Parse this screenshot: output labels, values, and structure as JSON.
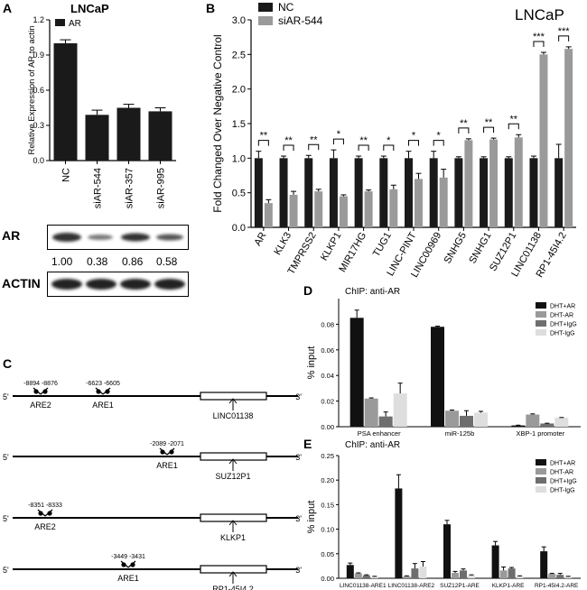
{
  "panels": {
    "A": {
      "letter": "A",
      "cell": "LNCaP",
      "chart_data": {
        "type": "bar",
        "categories": [
          "NC",
          "siAR-544",
          "siAR-357",
          "siAR-995"
        ],
        "series": [
          {
            "name": "AR",
            "values": [
              1.0,
              0.39,
              0.45,
              0.42
            ],
            "errors": [
              0.03,
              0.04,
              0.03,
              0.03
            ],
            "color": "#1a1a1a"
          }
        ],
        "ylabel": "Relative Expression of AR to actin",
        "ylim": [
          0,
          1.2
        ],
        "yticks": [
          0.0,
          0.3,
          0.6,
          0.9,
          1.2
        ],
        "legend": "top-left",
        "grid": false
      },
      "blot": {
        "ar_label": "AR",
        "actin_label": "ACTIN",
        "ratios": [
          "1.00",
          "0.38",
          "0.86",
          "0.58"
        ]
      }
    },
    "B": {
      "letter": "B",
      "cell": "LNCaP",
      "chart_data": {
        "type": "bar",
        "categories": [
          "AR",
          "KLK3",
          "TMPRSS2",
          "KLKP1",
          "MIR17HG",
          "TUG1",
          "LINC-PINT",
          "LINC00969",
          "SNHG5",
          "SNHG1",
          "SUZ12P1",
          "LINC01138",
          "RP1-45I4.2"
        ],
        "series": [
          {
            "name": "NC",
            "values": [
              1,
              1,
              1,
              1,
              1,
              1,
              1,
              1,
              1,
              1,
              1,
              1,
              1
            ],
            "errors": [
              0.1,
              0.03,
              0.04,
              0.12,
              0.03,
              0.03,
              0.1,
              0.1,
              0.02,
              0.02,
              0.02,
              0.03,
              0.2
            ],
            "color": "#1a1a1a"
          },
          {
            "name": "siAR-544",
            "values": [
              0.35,
              0.47,
              0.52,
              0.45,
              0.52,
              0.55,
              0.7,
              0.72,
              1.26,
              1.27,
              1.3,
              2.5,
              2.58
            ],
            "errors": [
              0.05,
              0.05,
              0.03,
              0.02,
              0.02,
              0.06,
              0.08,
              0.12,
              0.02,
              0.02,
              0.04,
              0.03,
              0.03
            ],
            "color": "#9a9a9a"
          }
        ],
        "significance": [
          "**",
          "**",
          "**",
          "*",
          "**",
          "*",
          "*",
          "*",
          "**",
          "**",
          "**",
          "***",
          "***"
        ],
        "ylabel": "Fold Changed Over Negative Control",
        "ylim": [
          0,
          3.0
        ],
        "yticks": [
          0.0,
          0.5,
          1.0,
          1.5,
          2.0,
          2.5,
          3.0
        ],
        "legend": "top-left",
        "grid": false
      }
    },
    "C": {
      "letter": "C",
      "prime5": "5'",
      "prime3": "3'",
      "tracks": [
        {
          "gene": "LINC01138",
          "sites": [
            {
              "name": "ARE2",
              "range": "-8894  -8876"
            },
            {
              "name": "ARE1",
              "range": "-6623  -6605"
            }
          ]
        },
        {
          "gene": "SUZ12P1",
          "sites": [
            {
              "name": "ARE1",
              "range": "-2089  -2071"
            }
          ]
        },
        {
          "gene": "KLKP1",
          "sites": [
            {
              "name": "ARE2",
              "range": "-8351  -8333"
            }
          ]
        },
        {
          "gene": "RP1-45I4.2",
          "sites": [
            {
              "name": "ARE1",
              "range": "-3449  -3431"
            }
          ]
        }
      ]
    },
    "D": {
      "letter": "D",
      "title": "ChIP: anti-AR",
      "chart_data": {
        "type": "bar",
        "categories": [
          "PSA enhancer",
          "miR-125b",
          "XBP-1 promoter"
        ],
        "series": [
          {
            "name": "DHT+AR",
            "values": [
              0.085,
              0.078,
              0.001
            ],
            "errors": [
              0.006,
              0.0005,
              0.0002
            ],
            "color": "#111111"
          },
          {
            "name": "DHT-AR",
            "values": [
              0.022,
              0.0125,
              0.0095
            ],
            "errors": [
              0.0005,
              0.0005,
              0.0005
            ],
            "color": "#9a9a9a"
          },
          {
            "name": "DHT+IgG",
            "values": [
              0.008,
              0.0085,
              0.0025
            ],
            "errors": [
              0.0035,
              0.004,
              0.0002
            ],
            "color": "#6e6e6e"
          },
          {
            "name": "DHT-IgG",
            "values": [
              0.026,
              0.011,
              0.007
            ],
            "errors": [
              0.008,
              0.001,
              0.0002
            ],
            "color": "#dedede"
          }
        ],
        "ylabel": "% input",
        "ylim": [
          0,
          0.1
        ],
        "yticks": [
          "0.00",
          "0.02",
          "0.04",
          "0.06",
          "0.08"
        ],
        "legend": "top-right",
        "grid": false
      }
    },
    "E": {
      "letter": "E",
      "title": "ChIP: anti-AR",
      "chart_data": {
        "type": "bar",
        "categories": [
          "LINC01138-ARE1",
          "LINC01138-ARE2",
          "SUZ12P1-ARE",
          "KLKP1-ARE",
          "RP1-45I4.2-ARE"
        ],
        "series": [
          {
            "name": "DHT+AR",
            "values": [
              0.027,
              0.183,
              0.11,
              0.067,
              0.055
            ],
            "errors": [
              0.004,
              0.028,
              0.008,
              0.008,
              0.009
            ],
            "color": "#111111"
          },
          {
            "name": "DHT-AR",
            "values": [
              0.01,
              0.004,
              0.011,
              0.016,
              0.009
            ],
            "errors": [
              0.001,
              0.001,
              0.003,
              0.007,
              0.001
            ],
            "color": "#9a9a9a"
          },
          {
            "name": "DHT+IgG",
            "values": [
              0.006,
              0.02,
              0.016,
              0.02,
              0.007
            ],
            "errors": [
              0.001,
              0.01,
              0.003,
              0.002,
              0.003
            ],
            "color": "#6e6e6e"
          },
          {
            "name": "DHT-IgG",
            "values": [
              0.003,
              0.024,
              0.006,
              0.004,
              0.003
            ],
            "errors": [
              0.001,
              0.01,
              0.001,
              0.001,
              0.001
            ],
            "color": "#dedede"
          }
        ],
        "ylabel": "% input",
        "ylim": [
          0,
          0.25
        ],
        "yticks": [
          "0.00",
          "0.05",
          "0.10",
          "0.15",
          "0.20",
          "0.25"
        ],
        "legend": "top-right",
        "grid": false
      }
    }
  }
}
